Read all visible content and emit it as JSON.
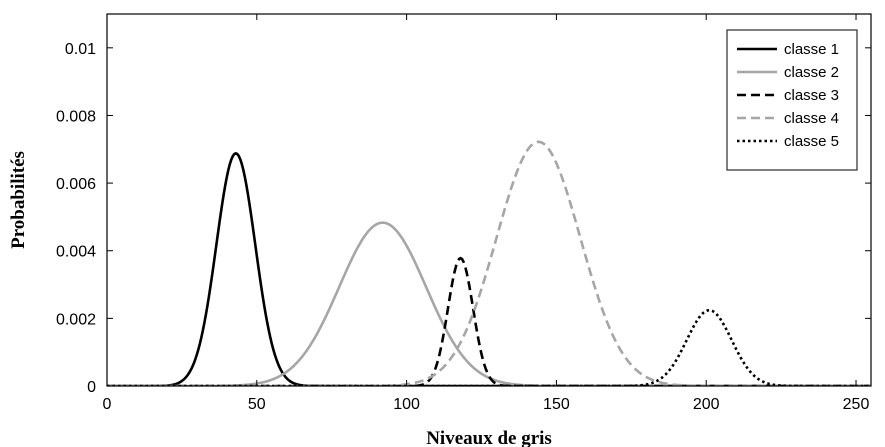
{
  "chart_data": {
    "type": "line",
    "title": "",
    "xlabel": "Niveaux de gris",
    "ylabel": "Probabilités",
    "xlim": [
      0,
      255
    ],
    "ylim": [
      0,
      0.011
    ],
    "xticks": [
      0,
      50,
      100,
      150,
      200,
      250
    ],
    "xtick_labels": [
      "0",
      "50",
      "100",
      "150",
      "200",
      "250"
    ],
    "yticks": [
      0,
      0.002,
      0.004,
      0.006,
      0.008,
      0.01
    ],
    "ytick_labels": [
      "0",
      "0.002",
      "0.004",
      "0.006",
      "0.008",
      "0.01"
    ],
    "grid": false,
    "legend_position": "top-right",
    "series": [
      {
        "name": "classe 1",
        "color": "#000000",
        "style": "solid",
        "mean": 43,
        "std": 6.5,
        "peak": 0.00688
      },
      {
        "name": "classe 2",
        "color": "#a6a6a6",
        "style": "solid",
        "mean": 92,
        "std": 14.5,
        "peak": 0.00483
      },
      {
        "name": "classe 3",
        "color": "#000000",
        "style": "dashed",
        "mean": 118,
        "std": 4.2,
        "peak": 0.00378
      },
      {
        "name": "classe 4",
        "color": "#a6a6a6",
        "style": "dashed",
        "mean": 144,
        "std": 14,
        "peak": 0.00722
      },
      {
        "name": "classe 5",
        "color": "#000000",
        "style": "dotted",
        "mean": 201,
        "std": 7.5,
        "peak": 0.00224
      }
    ]
  }
}
